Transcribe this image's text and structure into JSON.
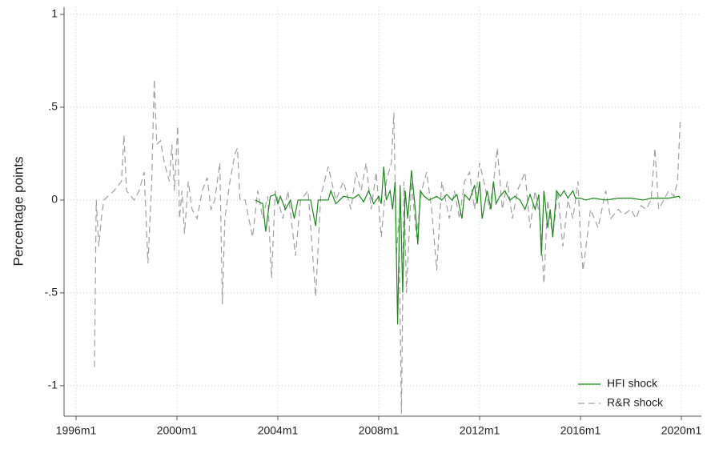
{
  "chart_data": {
    "type": "line",
    "y_label": "Percentage points",
    "xlim": [
      1996,
      2020
    ],
    "xticks": [
      {
        "value": 1996,
        "label": "1996m1"
      },
      {
        "value": 2000,
        "label": "2000m1"
      },
      {
        "value": 2004,
        "label": "2004m1"
      },
      {
        "value": 2008,
        "label": "2008m1"
      },
      {
        "value": 2012,
        "label": "2012m1"
      },
      {
        "value": 2016,
        "label": "2016m1"
      },
      {
        "value": 2020,
        "label": "2020m1"
      }
    ],
    "ylim": [
      -1.16,
      1.04
    ],
    "yticks": [
      -1,
      {
        "value": -0.5,
        "label": "-.5"
      },
      0,
      {
        "value": 0.5,
        "label": ".5"
      },
      1
    ],
    "grid": true,
    "legend": "bottom-right",
    "series": [
      {
        "name": "HFI shock",
        "color": "#1a8a1a",
        "dash": "none",
        "x": [
          2003.1,
          2003.4,
          2003.52,
          2003.7,
          2003.9,
          2004.0,
          2004.1,
          2004.3,
          2004.5,
          2004.65,
          2004.8,
          2005.0,
          2005.3,
          2005.5,
          2005.6,
          2006.0,
          2006.1,
          2006.3,
          2006.6,
          2007.0,
          2007.2,
          2007.4,
          2007.6,
          2007.8,
          2008.0,
          2008.1,
          2008.2,
          2008.3,
          2008.45,
          2008.55,
          2008.65,
          2008.75,
          2008.85,
          2008.95,
          2009.05,
          2009.15,
          2009.3,
          2009.45,
          2009.55,
          2009.65,
          2009.8,
          2010.0,
          2010.3,
          2010.5,
          2010.7,
          2010.9,
          2011.1,
          2011.3,
          2011.4,
          2011.6,
          2011.8,
          2011.9,
          2012.0,
          2012.1,
          2012.3,
          2012.45,
          2012.55,
          2012.65,
          2012.8,
          2013.0,
          2013.2,
          2013.4,
          2013.6,
          2013.8,
          2014.0,
          2014.2,
          2014.35,
          2014.45,
          2014.55,
          2014.7,
          2014.8,
          2014.9,
          2015.05,
          2015.2,
          2015.35,
          2015.5,
          2015.7,
          2015.8,
          2016.0,
          2016.2,
          2016.5,
          2017.0,
          2017.5,
          2018.0,
          2018.5,
          2018.8,
          2019.0,
          2019.5,
          2019.9,
          2019.95
        ],
        "values": [
          0,
          -0.02,
          -0.17,
          0.02,
          0.03,
          -0.02,
          0.02,
          -0.05,
          0,
          -0.1,
          0,
          0,
          0,
          -0.14,
          0,
          0,
          0.05,
          -0.02,
          0.02,
          0.01,
          0.03,
          -0.01,
          0.05,
          -0.02,
          0.02,
          -0.02,
          0.18,
          0,
          0.05,
          -0.05,
          0.1,
          -0.67,
          0.08,
          -0.5,
          0.05,
          -0.1,
          0.16,
          -0.05,
          -0.24,
          0.05,
          0.02,
          0,
          0.02,
          0,
          0.03,
          0,
          0.03,
          -0.1,
          0.03,
          0,
          0.08,
          -0.02,
          0.1,
          -0.1,
          0.05,
          -0.05,
          0.1,
          -0.02,
          0.02,
          0.05,
          0,
          0.02,
          0,
          -0.05,
          0.03,
          -0.05,
          0.03,
          -0.3,
          0.05,
          -0.15,
          -0.05,
          -0.2,
          0.05,
          0.02,
          0.05,
          0.01,
          0.05,
          0.01,
          0.01,
          0,
          0.01,
          0,
          0.01,
          0.01,
          0,
          0.01,
          0.01,
          0.01,
          0.02,
          0.01
        ]
      },
      {
        "name": "R&R shock",
        "color": "#a0a0a0",
        "dash": "8 5",
        "x": [
          1996.73,
          1996.8,
          1996.9,
          1997.0,
          1997.1,
          1997.5,
          1997.8,
          1997.9,
          1998.0,
          1998.3,
          1998.5,
          1998.7,
          1998.85,
          1999.0,
          1999.1,
          1999.2,
          1999.35,
          1999.5,
          1999.7,
          1999.8,
          1999.9,
          2000.03,
          2000.1,
          2000.2,
          2000.3,
          2000.45,
          2000.6,
          2000.8,
          2001.0,
          2001.2,
          2001.35,
          2001.5,
          2001.7,
          2001.8,
          2001.9,
          2002.0,
          2002.1,
          2002.3,
          2002.4,
          2002.5,
          2002.7,
          2003.0,
          2003.2,
          2003.4,
          2003.6,
          2003.75,
          2003.9,
          2004.2,
          2004.4,
          2004.7,
          2004.9,
          2005.2,
          2005.5,
          2005.7,
          2006.0,
          2006.3,
          2006.6,
          2006.9,
          2007.1,
          2007.3,
          2007.5,
          2007.7,
          2007.9,
          2008.1,
          2008.3,
          2008.5,
          2008.6,
          2008.7,
          2008.8,
          2008.9,
          2009.0,
          2009.1,
          2009.3,
          2009.5,
          2009.7,
          2009.9,
          2010.1,
          2010.3,
          2010.5,
          2010.8,
          2011.0,
          2011.2,
          2011.4,
          2011.6,
          2011.8,
          2012.0,
          2012.2,
          2012.4,
          2012.6,
          2012.7,
          2012.9,
          2013.1,
          2013.3,
          2013.5,
          2013.8,
          2014.0,
          2014.2,
          2014.4,
          2014.55,
          2014.7,
          2014.9,
          2015.1,
          2015.3,
          2015.5,
          2015.7,
          2015.9,
          2016.0,
          2016.1,
          2016.4,
          2016.7,
          2017.0,
          2017.2,
          2017.5,
          2017.7,
          2018.0,
          2018.2,
          2018.4,
          2018.6,
          2018.8,
          2018.95,
          2019.1,
          2019.3,
          2019.5,
          2019.7,
          2019.85,
          2019.95
        ],
        "values": [
          -0.9,
          0,
          -0.25,
          -0.1,
          0,
          0.05,
          0.1,
          0.35,
          0.05,
          0,
          0.05,
          0.15,
          -0.34,
          0.1,
          0.65,
          0.3,
          0.32,
          0.2,
          0.1,
          0.3,
          0.05,
          0.4,
          -0.1,
          0.05,
          -0.18,
          0.1,
          -0.05,
          -0.1,
          0.05,
          0.12,
          -0.05,
          0,
          0.2,
          -0.56,
          -0.1,
          0,
          0.1,
          0.25,
          0.28,
          0,
          0,
          -0.2,
          0.05,
          -0.1,
          0.02,
          -0.42,
          0.05,
          -0.1,
          0.05,
          -0.3,
          0,
          0.05,
          -0.52,
          0.02,
          0.18,
          0,
          0.1,
          -0.05,
          0.15,
          0.05,
          0.2,
          -0.05,
          0.15,
          -0.2,
          0.1,
          0.2,
          0.47,
          -0.3,
          -0.1,
          -1.15,
          0.1,
          -0.5,
          0.1,
          -0.2,
          0.05,
          0.15,
          -0.05,
          -0.38,
          0.1,
          -0.1,
          0.05,
          -0.1,
          0.1,
          0.15,
          -0.05,
          0.2,
          0.08,
          -0.05,
          0.15,
          0.28,
          -0.05,
          0.1,
          -0.1,
          0.05,
          0.15,
          -0.15,
          0.05,
          -0.1,
          -0.45,
          0,
          -0.2,
          0.05,
          -0.25,
          0,
          -0.1,
          0.1,
          -0.2,
          -0.38,
          -0.05,
          -0.15,
          0.05,
          -0.1,
          -0.05,
          -0.08,
          -0.05,
          -0.1,
          -0.03,
          -0.05,
          0,
          0.28,
          -0.05,
          0,
          0.05,
          0.02,
          0.1,
          0.42
        ]
      }
    ]
  }
}
